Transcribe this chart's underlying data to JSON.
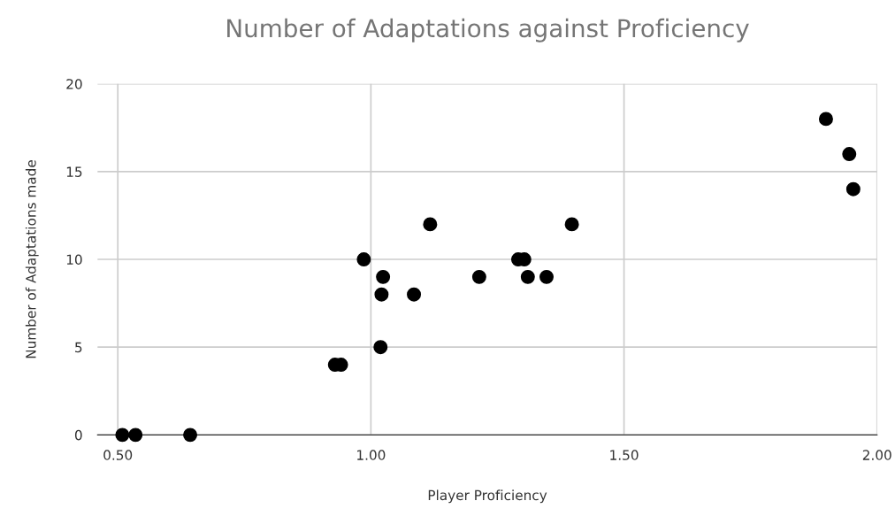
{
  "chart_data": {
    "type": "scatter",
    "title": "Number of Adaptations against Proficiency",
    "xlabel": "Player Proficiency",
    "ylabel": "Number of Adaptations made",
    "series": [
      {
        "color": "#000000",
        "x": [
          0.509,
          0.535,
          0.643,
          0.929,
          0.941,
          0.986,
          1.019,
          1.021,
          1.024,
          1.085,
          1.117,
          1.214,
          1.291,
          1.303,
          1.31,
          1.347,
          1.397,
          1.899,
          1.945,
          1.953
        ],
        "values": [
          0,
          0,
          0,
          4,
          4,
          10,
          5,
          8,
          9,
          8,
          12,
          9,
          10,
          10,
          9,
          9,
          12,
          18,
          16,
          14
        ]
      }
    ],
    "xlim": [
      0.46,
      2.0
    ],
    "ylim": [
      0,
      20
    ],
    "xticks": [
      {
        "value": 0.5,
        "label": "0.50"
      },
      {
        "value": 1.0,
        "label": "1.00"
      },
      {
        "value": 1.5,
        "label": "1.50"
      },
      {
        "value": 2.0,
        "label": "2.00"
      }
    ],
    "yticks": [
      0,
      5,
      10,
      15,
      20
    ],
    "grid": true,
    "marker": "circle",
    "legend": false
  }
}
